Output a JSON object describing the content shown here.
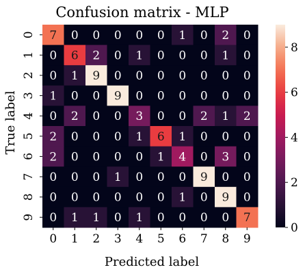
{
  "chart_data": {
    "type": "heatmap",
    "title": "Confusion matrix - MLP",
    "xlabel": "Predicted label",
    "ylabel": "True label",
    "x_categories": [
      "0",
      "1",
      "2",
      "3",
      "4",
      "5",
      "6",
      "7",
      "8",
      "9"
    ],
    "y_categories": [
      "0",
      "1",
      "2",
      "3",
      "4",
      "5",
      "6",
      "7",
      "8",
      "9"
    ],
    "values": [
      [
        7,
        0,
        0,
        0,
        0,
        0,
        1,
        0,
        2,
        0
      ],
      [
        0,
        6,
        2,
        0,
        1,
        0,
        0,
        0,
        1,
        0
      ],
      [
        0,
        1,
        9,
        0,
        0,
        0,
        0,
        0,
        0,
        0
      ],
      [
        1,
        0,
        0,
        9,
        0,
        0,
        0,
        0,
        0,
        0
      ],
      [
        0,
        2,
        0,
        0,
        3,
        0,
        0,
        2,
        1,
        2
      ],
      [
        2,
        0,
        0,
        0,
        1,
        6,
        1,
        0,
        0,
        0
      ],
      [
        2,
        0,
        0,
        0,
        0,
        1,
        4,
        0,
        3,
        0
      ],
      [
        0,
        0,
        0,
        1,
        0,
        0,
        0,
        9,
        0,
        0
      ],
      [
        0,
        0,
        0,
        0,
        0,
        0,
        1,
        0,
        9,
        0
      ],
      [
        0,
        1,
        1,
        0,
        1,
        0,
        0,
        0,
        0,
        7
      ]
    ],
    "colorbar": {
      "ticks": [
        "0",
        "2",
        "4",
        "6",
        "8"
      ],
      "range": [
        0,
        9
      ],
      "colormap": "rocket"
    }
  }
}
